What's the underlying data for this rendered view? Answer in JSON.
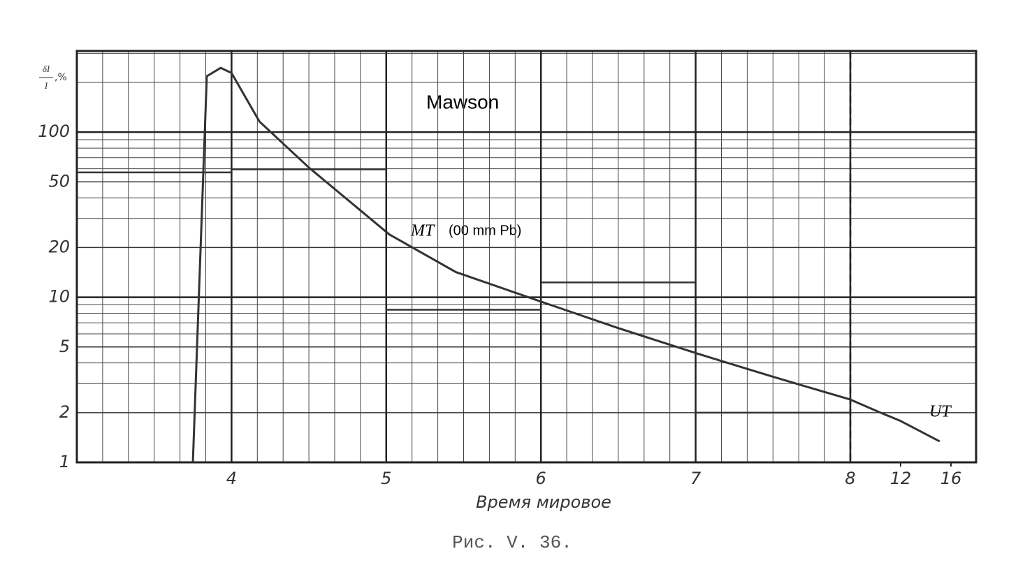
{
  "chart_data": {
    "type": "line",
    "title": "Mawson",
    "annotation": "MT",
    "annotation_note": "(00 mm Pb)",
    "x_unit": "UT",
    "xlabel": "Время мировое",
    "caption": "Рис. V. 36.",
    "ylabel": {
      "numerator": "δI",
      "denominator": "I",
      "unit": ",%"
    },
    "xlim": [
      3,
      8
    ],
    "x2lim": [
      8,
      18
    ],
    "xticks": [
      4,
      5,
      6,
      7,
      8
    ],
    "x2ticks": [
      12,
      16
    ],
    "xminor_per_hour": 6,
    "dashed_x": 8,
    "ylog": true,
    "ylim": [
      1,
      310
    ],
    "yticks": [
      1,
      2,
      5,
      10,
      20,
      50,
      100
    ],
    "ymajor": [
      10,
      100
    ],
    "yminor": [
      3,
      4,
      6,
      7,
      8,
      9,
      30,
      40,
      60,
      70,
      80,
      90,
      200,
      300
    ],
    "grid": true,
    "series": [
      {
        "name": "MT",
        "color": "#333333",
        "x": [
          3.75,
          3.84,
          3.93,
          4.0,
          4.18,
          4.5,
          5.02,
          5.45,
          6.03,
          6.5,
          7.03,
          7.5,
          8.0,
          10.4,
          12,
          15.1
        ],
        "values": [
          1,
          218,
          245,
          228,
          116,
          61,
          24,
          14.2,
          9.2,
          6.5,
          4.5,
          3.3,
          2.4,
          2.0,
          1.78,
          1.34
        ]
      }
    ],
    "steps": {
      "color": "#333333",
      "bins": [
        3,
        4,
        5,
        6,
        7,
        8
      ],
      "values": [
        57,
        59.5,
        8.4,
        12.3,
        2.0
      ]
    }
  }
}
